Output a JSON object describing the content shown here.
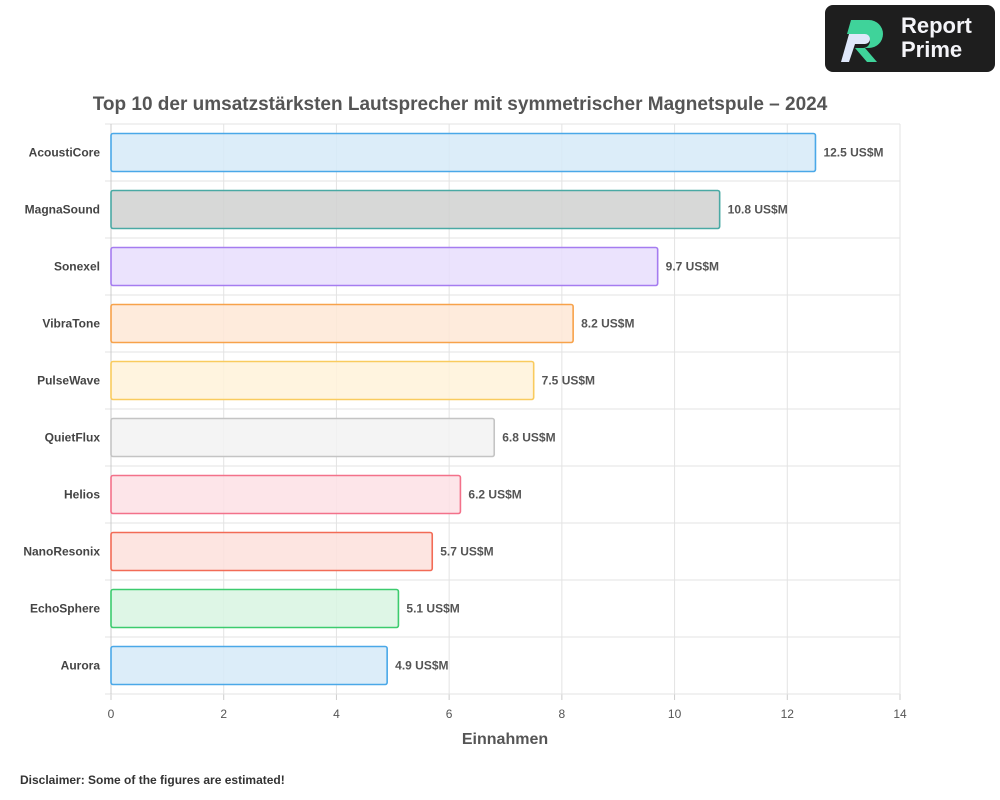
{
  "brand": {
    "name": "Report Prime"
  },
  "disclaimer": "Disclaimer: Some of the figures are estimated!",
  "chart_data": {
    "type": "bar",
    "orientation": "horizontal",
    "title": "Top 10 der umsatzstärksten Lautsprecher mit symmetrischer Magnetspule – 2024",
    "xlabel": "Einnahmen",
    "ylabel": "",
    "xlim": [
      0,
      14
    ],
    "xticks": [
      0,
      2,
      4,
      6,
      8,
      10,
      12,
      14
    ],
    "grid": true,
    "categories": [
      "AcoustiCore",
      "MagnaSound",
      "Sonexel",
      "VibraTone",
      "PulseWave",
      "QuietFlux",
      "Helios",
      "NanoResonix",
      "EchoSphere",
      "Aurora"
    ],
    "values": [
      12.5,
      10.8,
      9.7,
      8.2,
      7.5,
      6.8,
      6.2,
      5.7,
      5.1,
      4.9
    ],
    "data_labels": [
      "12.5 US$M",
      "10.8 US$M",
      "9.7 US$M",
      "8.2 US$M",
      "7.5 US$M",
      "6.8 US$M",
      "6.2 US$M",
      "5.7 US$M",
      "5.1 US$M",
      "4.9 US$M"
    ],
    "colors": [
      {
        "fill": "#d6eaf8",
        "stroke": "#4aa8e8"
      },
      {
        "fill": "#d0d1d0",
        "stroke": "#4aa9a4"
      },
      {
        "fill": "#e8defd",
        "stroke": "#a57cf0"
      },
      {
        "fill": "#fee8d6",
        "stroke": "#f7a24a"
      },
      {
        "fill": "#fff2d9",
        "stroke": "#f9cb5e"
      },
      {
        "fill": "#f2f2f2",
        "stroke": "#c4c4c4"
      },
      {
        "fill": "#fde0e5",
        "stroke": "#f3718a"
      },
      {
        "fill": "#fde0dc",
        "stroke": "#f26b56"
      },
      {
        "fill": "#d8f4e2",
        "stroke": "#3ccb6e"
      },
      {
        "fill": "#d6eaf8",
        "stroke": "#4aa8e8"
      }
    ]
  }
}
